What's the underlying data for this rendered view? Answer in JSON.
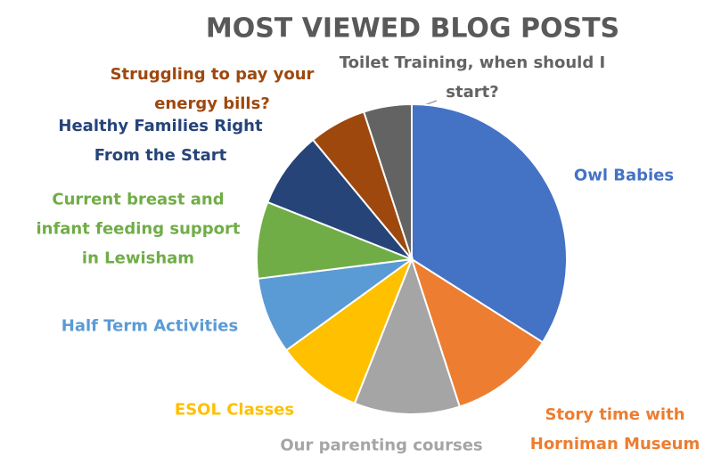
{
  "chart_data": {
    "type": "pie",
    "title": "MOST VIEWED BLOG POSTS",
    "categories": [
      "Owl Babies",
      "Story time with Horniman Museum",
      "Our parenting courses",
      "ESOL Classes",
      "Half Term Activities",
      "Current breast and infant feeding support in Lewisham",
      "Healthy Families Right From the Start",
      "Struggling to pay your energy bills?",
      "Toilet Training, when should I start?"
    ],
    "values": [
      34,
      11,
      11,
      9,
      8,
      8,
      8,
      6,
      5
    ],
    "colors": [
      "#4472c4",
      "#ed7d31",
      "#a5a5a5",
      "#ffc000",
      "#5b9bd5",
      "#70ad47",
      "#264478",
      "#9e480e",
      "#636363"
    ]
  }
}
